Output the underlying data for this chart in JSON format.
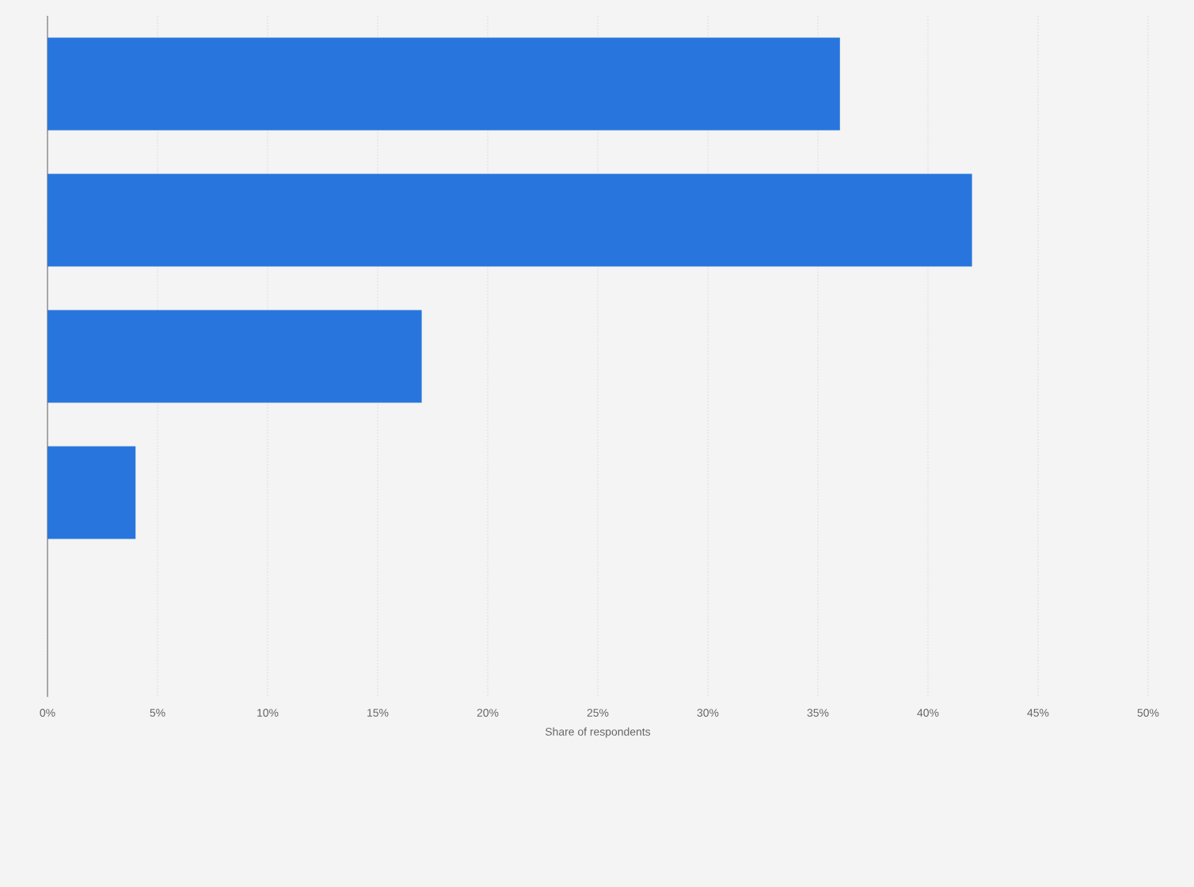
{
  "chart_data": {
    "type": "bar",
    "orientation": "horizontal",
    "categories": [
      null,
      null,
      null,
      null,
      null
    ],
    "values": [
      36,
      42,
      17,
      4,
      null
    ],
    "color": "#2876dd",
    "xlabel": "Share of respondents",
    "xlim": [
      0,
      50
    ],
    "xticks": [
      {
        "value": 0,
        "label": "0%"
      },
      {
        "value": 5,
        "label": "5%"
      },
      {
        "value": 10,
        "label": "10%"
      },
      {
        "value": 15,
        "label": "15%"
      },
      {
        "value": 20,
        "label": "20%"
      },
      {
        "value": 25,
        "label": "25%"
      },
      {
        "value": 30,
        "label": "30%"
      },
      {
        "value": 35,
        "label": "35%"
      },
      {
        "value": 40,
        "label": "40%"
      },
      {
        "value": 45,
        "label": "45%"
      },
      {
        "value": 50,
        "label": "50%"
      }
    ],
    "grid": "x",
    "tick_labels": "x"
  }
}
